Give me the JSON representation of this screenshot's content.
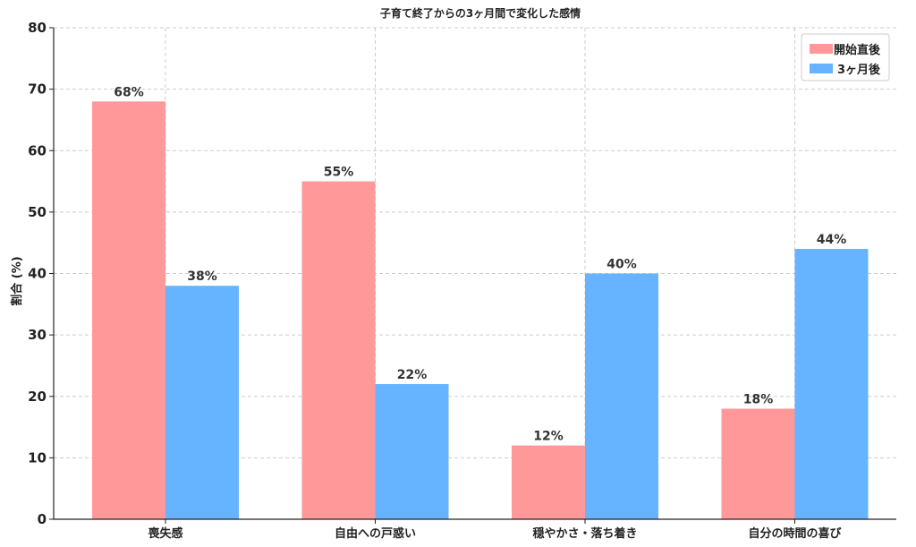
{
  "chart_data": {
    "type": "bar",
    "title": "子育て終了からの3ヶ月間で変化した感情",
    "xlabel": "",
    "ylabel": "割合 (%)",
    "ylim": [
      0,
      80
    ],
    "yticks": [
      0,
      10,
      20,
      30,
      40,
      50,
      60,
      70,
      80
    ],
    "categories": [
      "喪失感",
      "自由への戸惑い",
      "穏やかさ・落ち着き",
      "自分の時間の喜び"
    ],
    "series": [
      {
        "name": "開始直後",
        "values": [
          68,
          55,
          12,
          18
        ],
        "color": "#ff9999"
      },
      {
        "name": "3ヶ月後",
        "values": [
          38,
          22,
          40,
          44
        ],
        "color": "#66b3ff"
      }
    ],
    "value_suffix": "%",
    "grid": true,
    "legend_position": "top-right"
  }
}
